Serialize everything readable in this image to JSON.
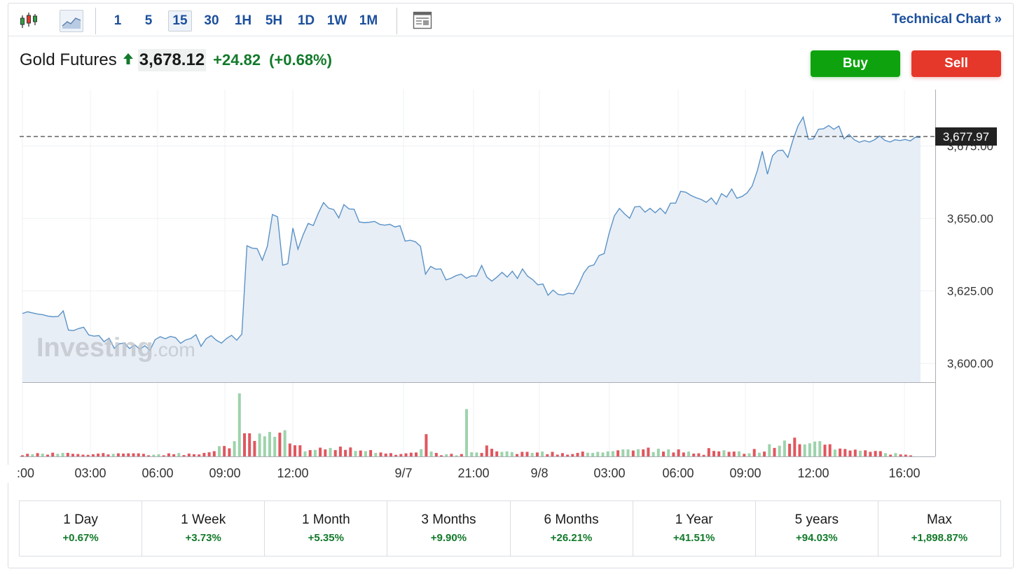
{
  "toolbar": {
    "intervals": [
      "1",
      "5",
      "15",
      "30",
      "1H",
      "5H",
      "1D",
      "1W",
      "1M"
    ],
    "active_interval": "15",
    "technical_chart_label": "Technical Chart »"
  },
  "header": {
    "instrument": "Gold Futures",
    "price": "3,678.12",
    "change": "+24.82",
    "change_pct": "(+0.68%)",
    "direction": "up"
  },
  "actions": {
    "buy_label": "Buy",
    "sell_label": "Sell"
  },
  "colors": {
    "up": "#127a2a",
    "buy": "#0ea30e",
    "sell": "#e5382a",
    "line": "#5b93c7",
    "area": "#e8eef6",
    "brand": "#1b4f9c"
  },
  "watermark": "Investing.com",
  "chart_data": {
    "type": "area",
    "current_price_label": "3,677.97",
    "y_ticks": [
      "3,600.00",
      "3,625.00",
      "3,650.00",
      "3,675.00"
    ],
    "y_tick_values": [
      3600,
      3625,
      3650,
      3675
    ],
    "ylim": [
      3593.5,
      3694.5
    ],
    "x_ticks": [
      ":00",
      "03:00",
      "06:00",
      "09:00",
      "12:00",
      "9/7",
      "21:00",
      "9/8",
      "03:00",
      "06:00",
      "09:00",
      "12:00",
      "16:00"
    ],
    "values": [
      3617.2,
      3617.8,
      3617.4,
      3617.0,
      3616.8,
      3616.3,
      3616.1,
      3616.2,
      3618.1,
      3611.5,
      3611.3,
      3612.0,
      3612.5,
      3609.8,
      3609.4,
      3609.6,
      3607.5,
      3608.7,
      3605.2,
      3606.8,
      3607.0,
      3605.1,
      3606.4,
      3604.9,
      3606.1,
      3604.5,
      3608.2,
      3609.2,
      3608.5,
      3609.3,
      3608.9,
      3606.9,
      3608.1,
      3608.6,
      3609.9,
      3605.9,
      3608.5,
      3609.6,
      3608.0,
      3607.0,
      3608.6,
      3609.7,
      3608.0,
      3610.1,
      3640.6,
      3639.8,
      3639.6,
      3635.6,
      3640.4,
      3651.4,
      3650.6,
      3633.9,
      3634.4,
      3646.7,
      3639.4,
      3644.3,
      3648.3,
      3647.6,
      3651.9,
      3655.5,
      3653.6,
      3653.1,
      3650.2,
      3654.8,
      3653.3,
      3653.2,
      3648.8,
      3648.6,
      3648.7,
      3649.0,
      3648.0,
      3647.7,
      3648.0,
      3647.1,
      3647.5,
      3642.2,
      3642.5,
      3642.0,
      3640.4,
      3630.8,
      3633.5,
      3632.5,
      3632.6,
      3628.8,
      3629.4,
      3630.3,
      3630.8,
      3629.4,
      3630.2,
      3630.1,
      3633.8,
      3629.8,
      3628.4,
      3629.8,
      3631.4,
      3629.8,
      3631.8,
      3629.3,
      3632.6,
      3630.1,
      3628.9,
      3627.1,
      3627.4,
      3623.5,
      3625.3,
      3623.8,
      3623.6,
      3624.2,
      3624.0,
      3627.2,
      3631.2,
      3633.5,
      3634.0,
      3637.2,
      3637.9,
      3645.1,
      3650.9,
      3653.5,
      3651.6,
      3650.1,
      3654.0,
      3654.2,
      3652.2,
      3653.5,
      3652.0,
      3653.6,
      3651.7,
      3655.3,
      3655.3,
      3659.4,
      3659.1,
      3658.0,
      3657.2,
      3656.6,
      3655.6,
      3657.1,
      3654.9,
      3658.6,
      3657.4,
      3660.2,
      3657.0,
      3657.6,
      3658.8,
      3661.2,
      3666.4,
      3673.2,
      3665.3,
      3671.7,
      3673.4,
      3673.6,
      3671.1,
      3677.1,
      3682.0,
      3685.0,
      3677.4,
      3677.5,
      3680.8,
      3681.0,
      3682.1,
      3680.8,
      3681.9,
      3677.5,
      3679.0,
      3677.2,
      3676.3,
      3676.9,
      3676.4,
      3677.2,
      3678.5,
      3677.0,
      3676.4,
      3677.2,
      3676.9,
      3677.3,
      3676.8,
      3678.1,
      3678.0
    ],
    "volume_directions": "rrgrgrrggrrrrrrrrrgrrrrrrrggrrrgrrrrrrrgrrggrrrggggrgrrrgrgrrgrrrrgrgrgrrrrrrrrgrgrrgrgrgggrrrrgggrrrgrgrrrrrrrrggggggrggrgrrggrgrrrgrrrrrrgrrgrgrgrgrggrrrggggrrgrrrrgrrrrgrgrrrrrrrrggrrrrgrrgrr",
    "volume": [
      0.05,
      0.12,
      0.1,
      0.15,
      0.13,
      0.08,
      0.17,
      0.12,
      0.16,
      0.16,
      0.12,
      0.11,
      0.08,
      0.07,
      0.1,
      0.13,
      0.15,
      0.09,
      0.12,
      0.14,
      0.13,
      0.14,
      0.14,
      0.14,
      0.12,
      0.05,
      0.08,
      0.1,
      0.05,
      0.14,
      0.1,
      0.15,
      0.06,
      0.13,
      0.1,
      0.09,
      0.16,
      0.19,
      0.24,
      0.47,
      0.48,
      0.37,
      0.7,
      2.89,
      1.06,
      1.06,
      0.71,
      1.05,
      0.92,
      1.12,
      0.9,
      1.09,
      1.2,
      0.59,
      0.51,
      0.51,
      0.23,
      0.29,
      0.3,
      0.4,
      0.32,
      0.39,
      0.29,
      0.45,
      0.3,
      0.41,
      0.25,
      0.27,
      0.24,
      0.29,
      0.16,
      0.18,
      0.13,
      0.15,
      0.07,
      0.11,
      0.14,
      0.17,
      0.18,
      0.33,
      1.02,
      0.22,
      0.16,
      0.05,
      0.1,
      0.12,
      0.05,
      0.11,
      2.17,
      0.19,
      0.18,
      0.16,
      0.5,
      0.35,
      0.23,
      0.21,
      0.23,
      0.2,
      0.11,
      0.21,
      0.21,
      0.16,
      0.18,
      0.22,
      0.1,
      0.21,
      0.08,
      0.15,
      0.08,
      0.11,
      0.16,
      0.22,
      0.17,
      0.16,
      0.21,
      0.18,
      0.23,
      0.24,
      0.28,
      0.32,
      0.32,
      0.27,
      0.33,
      0.32,
      0.4,
      0.2,
      0.35,
      0.22,
      0.32,
      0.18,
      0.32,
      0.18,
      0.22,
      0.13,
      0.14,
      0.07,
      0.38,
      0.25,
      0.23,
      0.28,
      0.21,
      0.22,
      0.23,
      0.12,
      0.14,
      0.34,
      0.17,
      0.22,
      0.56,
      0.39,
      0.49,
      0.73,
      0.58,
      0.86,
      0.56,
      0.55,
      0.6,
      0.68,
      0.7,
      0.54,
      0.56,
      0.31,
      0.36,
      0.34,
      0.27,
      0.31,
      0.26,
      0.28,
      0.21,
      0.25,
      0.24,
      0.15,
      0.08,
      0.15,
      0.09,
      0.08,
      0.01
    ]
  },
  "performance": [
    {
      "label": "1 Day",
      "value": "+0.67%"
    },
    {
      "label": "1 Week",
      "value": "+3.73%"
    },
    {
      "label": "1 Month",
      "value": "+5.35%"
    },
    {
      "label": "3 Months",
      "value": "+9.90%"
    },
    {
      "label": "6 Months",
      "value": "+26.21%"
    },
    {
      "label": "1 Year",
      "value": "+41.51%"
    },
    {
      "label": "5 years",
      "value": "+94.03%"
    },
    {
      "label": "Max",
      "value": "+1,898.87%"
    }
  ]
}
